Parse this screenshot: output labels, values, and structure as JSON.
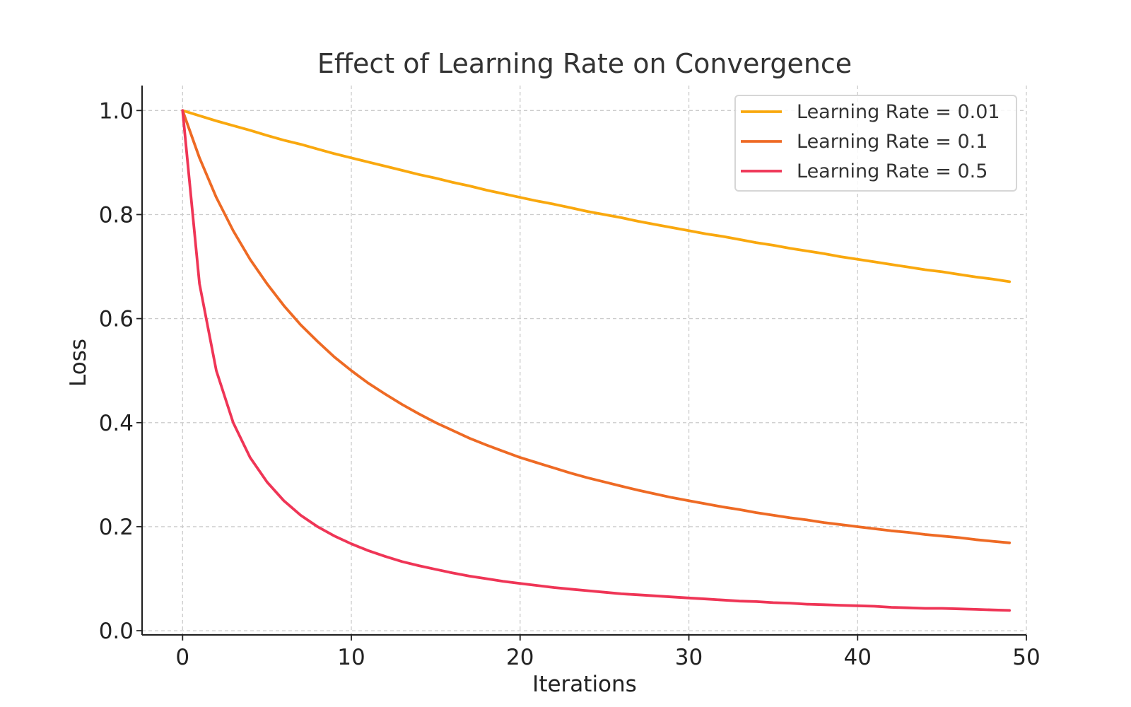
{
  "chart_data": {
    "type": "line",
    "title": "Effect of Learning Rate on Convergence",
    "xlabel": "Iterations",
    "ylabel": "Loss",
    "xlim": [
      -2.4,
      50.0
    ],
    "ylim": [
      -0.008,
      1.048
    ],
    "xticks": [
      0,
      10,
      20,
      30,
      40,
      50
    ],
    "xtick_labels": [
      "0",
      "10",
      "20",
      "30",
      "40",
      "50"
    ],
    "yticks": [
      0.0,
      0.2,
      0.4,
      0.6,
      0.8,
      1.0
    ],
    "ytick_labels": [
      "0.0",
      "0.2",
      "0.4",
      "0.6",
      "0.8",
      "1.0"
    ],
    "grid": true,
    "legend_position": "top-right",
    "x": [
      0,
      1,
      2,
      3,
      4,
      5,
      6,
      7,
      8,
      9,
      10,
      11,
      12,
      13,
      14,
      15,
      16,
      17,
      18,
      19,
      20,
      21,
      22,
      23,
      24,
      25,
      26,
      27,
      28,
      29,
      30,
      31,
      32,
      33,
      34,
      35,
      36,
      37,
      38,
      39,
      40,
      41,
      42,
      43,
      44,
      45,
      46,
      47,
      48,
      49
    ],
    "series": [
      {
        "name": "Learning Rate = 0.01",
        "color": "#f9a80e",
        "values": [
          1.0,
          0.99,
          0.98,
          0.971,
          0.962,
          0.952,
          0.943,
          0.935,
          0.926,
          0.917,
          0.909,
          0.901,
          0.893,
          0.885,
          0.877,
          0.87,
          0.862,
          0.855,
          0.847,
          0.84,
          0.833,
          0.826,
          0.82,
          0.813,
          0.806,
          0.8,
          0.794,
          0.787,
          0.781,
          0.775,
          0.769,
          0.763,
          0.758,
          0.752,
          0.746,
          0.741,
          0.735,
          0.73,
          0.725,
          0.719,
          0.714,
          0.709,
          0.704,
          0.699,
          0.694,
          0.69,
          0.685,
          0.68,
          0.676,
          0.671
        ]
      },
      {
        "name": "Learning Rate = 0.1",
        "color": "#ee6a24",
        "values": [
          1.0,
          0.909,
          0.833,
          0.769,
          0.714,
          0.667,
          0.625,
          0.588,
          0.556,
          0.526,
          0.5,
          0.476,
          0.455,
          0.435,
          0.417,
          0.4,
          0.385,
          0.37,
          0.357,
          0.345,
          0.333,
          0.323,
          0.313,
          0.303,
          0.294,
          0.286,
          0.278,
          0.27,
          0.263,
          0.256,
          0.25,
          0.244,
          0.238,
          0.233,
          0.227,
          0.222,
          0.217,
          0.213,
          0.208,
          0.204,
          0.2,
          0.196,
          0.192,
          0.189,
          0.185,
          0.182,
          0.179,
          0.175,
          0.172,
          0.169
        ]
      },
      {
        "name": "Learning Rate = 0.5",
        "color": "#ef3556",
        "values": [
          1.0,
          0.667,
          0.5,
          0.4,
          0.333,
          0.286,
          0.25,
          0.222,
          0.2,
          0.182,
          0.167,
          0.154,
          0.143,
          0.133,
          0.125,
          0.118,
          0.111,
          0.105,
          0.1,
          0.095,
          0.091,
          0.087,
          0.083,
          0.08,
          0.077,
          0.074,
          0.071,
          0.069,
          0.067,
          0.065,
          0.063,
          0.061,
          0.059,
          0.057,
          0.056,
          0.054,
          0.053,
          0.051,
          0.05,
          0.049,
          0.048,
          0.047,
          0.045,
          0.044,
          0.043,
          0.043,
          0.042,
          0.041,
          0.04,
          0.039
        ]
      }
    ]
  }
}
